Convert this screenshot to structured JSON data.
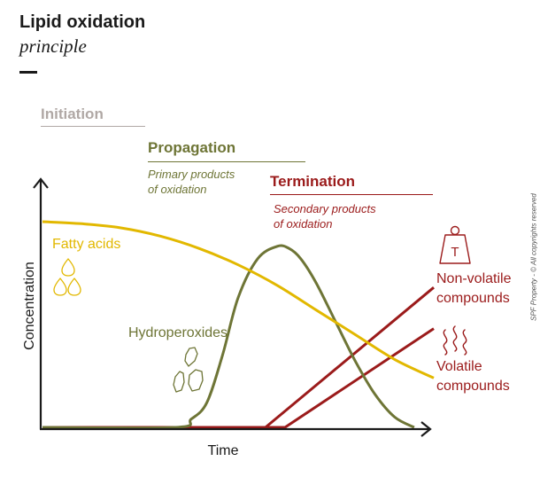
{
  "header": {
    "title": "Lipid oxidation",
    "subtitle": "principle"
  },
  "phases": {
    "initiation": "Initiation",
    "propagation": "Propagation",
    "propagation_note": [
      "Primary products",
      "of oxidation"
    ],
    "termination": "Termination",
    "termination_note": [
      "Secondary products",
      "of oxidation"
    ]
  },
  "credit": "SPF Property - © All copyrights reserved",
  "icons": {
    "fatty_acids": "droplets-icon",
    "hydroperoxides": "molecule-fragments-icon",
    "non_volatile": "weight-icon",
    "volatile": "vapor-icon",
    "weight_letter": "T"
  },
  "colors": {
    "fatty_acids": "#e2b800",
    "hydroperoxides": "#6e7536",
    "non_volatile": "#9b1b1b",
    "volatile": "#9b1b1b",
    "initiation": "#b0a8a5",
    "axis": "#1a1a1a"
  },
  "chart_data": {
    "type": "line",
    "xlabel": "Time",
    "ylabel": "Concentration",
    "x_ticks": "none",
    "y_ticks": "none",
    "xlim": [
      0,
      100
    ],
    "ylim": [
      0,
      100
    ],
    "grid": false,
    "series": [
      {
        "name": "Fatty acids",
        "label_lines": [
          "Fatty acids"
        ],
        "x": [
          0,
          10,
          20,
          30,
          40,
          50,
          60,
          70,
          80,
          90,
          100
        ],
        "y": [
          100,
          99,
          97,
          93,
          87,
          79,
          69,
          57,
          45,
          33,
          24
        ]
      },
      {
        "name": "Hydroperoxides",
        "label_lines": [
          "Hydroperoxides"
        ],
        "x": [
          0,
          34,
          38,
          42,
          46,
          50,
          55,
          60,
          63,
          66,
          70,
          75,
          80,
          85,
          90,
          95
        ],
        "y": [
          0,
          0,
          4,
          12,
          35,
          63,
          82,
          88,
          87,
          82,
          70,
          51,
          32,
          16,
          5,
          0
        ]
      },
      {
        "name": "Non-volatile compounds",
        "label_lines": [
          "Non-volatile",
          "compounds"
        ],
        "x": [
          0,
          45,
          57,
          100
        ],
        "y": [
          0,
          0,
          0,
          68
        ]
      },
      {
        "name": "Volatile compounds",
        "label_lines": [
          "Volatile",
          "compounds"
        ],
        "x": [
          0,
          45,
          62,
          100
        ],
        "y": [
          0,
          0,
          0,
          48
        ]
      }
    ]
  }
}
